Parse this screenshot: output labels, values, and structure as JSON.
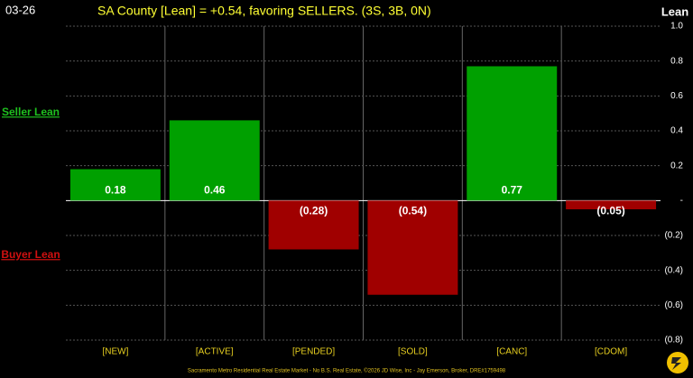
{
  "chart_data": {
    "type": "bar",
    "date_label": "03-26",
    "title": "SA County [Lean] = +0.54, favoring SELLERS. (3S, 3B, 0N)",
    "y_axis_title": "Lean",
    "upper_label": "Seller Lean",
    "lower_label": "Buyer Lean",
    "footer": "Sacramento Metro Residential Real Estate Market - No B.S. Real Estate, ©2026 JD Wise, Inc - Jay Emerson, Broker, DRE#1759498",
    "categories": [
      "[NEW]",
      "[ACTIVE]",
      "[PENDED]",
      "[SOLD]",
      "[CANC]",
      "[CDOM]"
    ],
    "values": [
      0.18,
      0.46,
      -0.28,
      -0.54,
      0.77,
      -0.05
    ],
    "value_labels": [
      "0.18",
      "0.46",
      "(0.28)",
      "(0.54)",
      "0.77",
      "(0.05)"
    ],
    "positive_color": "#00a000",
    "negative_color": "#a00000",
    "ylim": [
      -0.8,
      1
    ],
    "yticks": [
      {
        "value": 1,
        "label": "1.0"
      },
      0.8,
      0.6,
      0.4,
      0.2,
      {
        "value": 0,
        "label": "-"
      },
      {
        "value": -0.2,
        "label": "(0.2)"
      },
      {
        "value": -0.4,
        "label": "(0.4)"
      },
      {
        "value": -0.6,
        "label": "(0.6)"
      },
      {
        "value": -0.8,
        "label": "(0.8)"
      }
    ],
    "grid": true
  }
}
